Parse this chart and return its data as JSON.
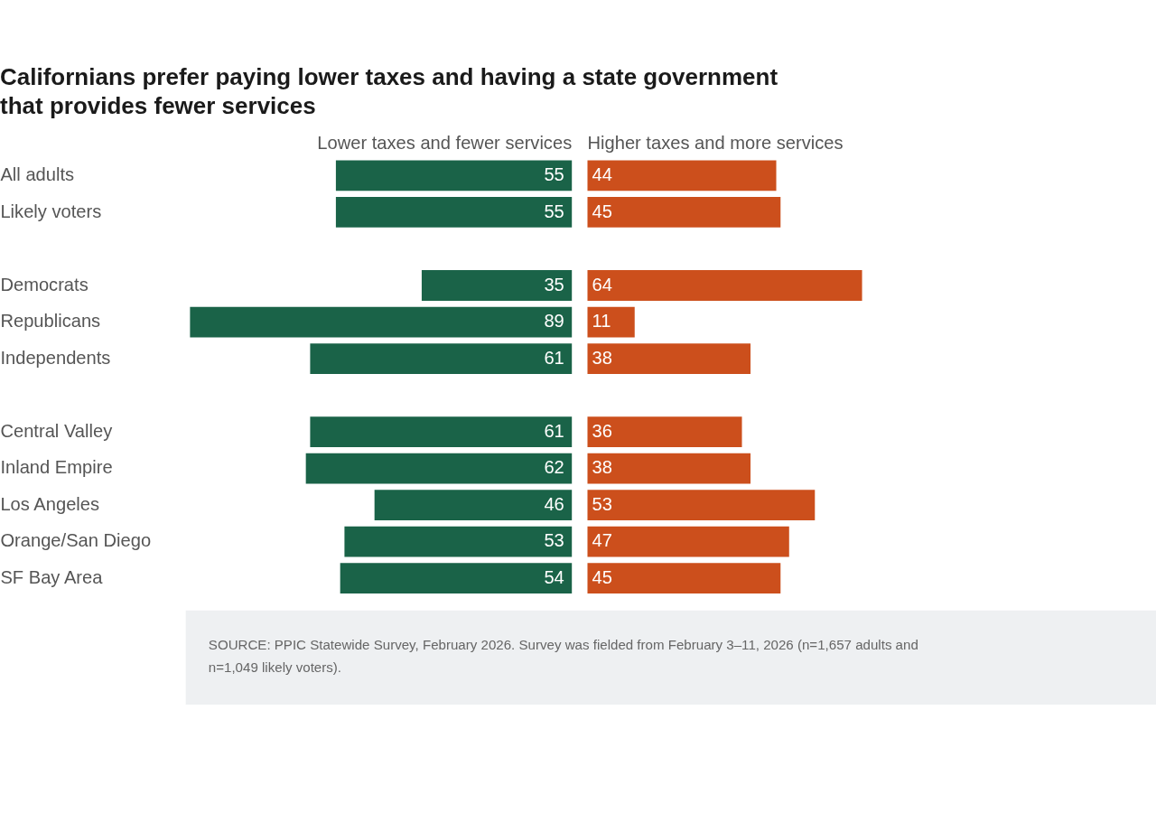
{
  "chart_data": [
    {
      "type": "bar",
      "orientation": "horizontal",
      "title": "Californians prefer paying lower taxes and having a state government that provides fewer services",
      "categories": [
        "All adults",
        "Likely voters",
        null,
        "Democrats",
        "Republicans",
        "Independents",
        null,
        "Central Valley",
        "Inland Empire",
        "Los Angeles",
        "Orange/San Diego",
        "SF Bay Area"
      ],
      "series": [
        {
          "name": "Lower taxes and fewer services",
          "color": "#1a6348",
          "values": [
            55,
            55,
            null,
            35,
            89,
            61,
            null,
            61,
            62,
            46,
            53,
            54
          ]
        }
      ],
      "xlim": [
        90,
        0
      ],
      "tick_labels": "y",
      "data_labels": true,
      "annotations": [
        "SOURCE: PPIC Statewide Survey, February 2026. Survey was fielded from February 3–11, 2026 (n=1,657 adults and n=1,049 likely voters)."
      ]
    },
    {
      "type": "bar",
      "orientation": "horizontal",
      "series": [
        {
          "name": "Higher taxes and more services",
          "color": "#cc4f1c",
          "values": [
            44,
            45,
            null,
            64,
            11,
            38,
            null,
            36,
            38,
            53,
            47,
            45
          ]
        }
      ],
      "tick_labels": false,
      "data_labels": true
    }
  ]
}
